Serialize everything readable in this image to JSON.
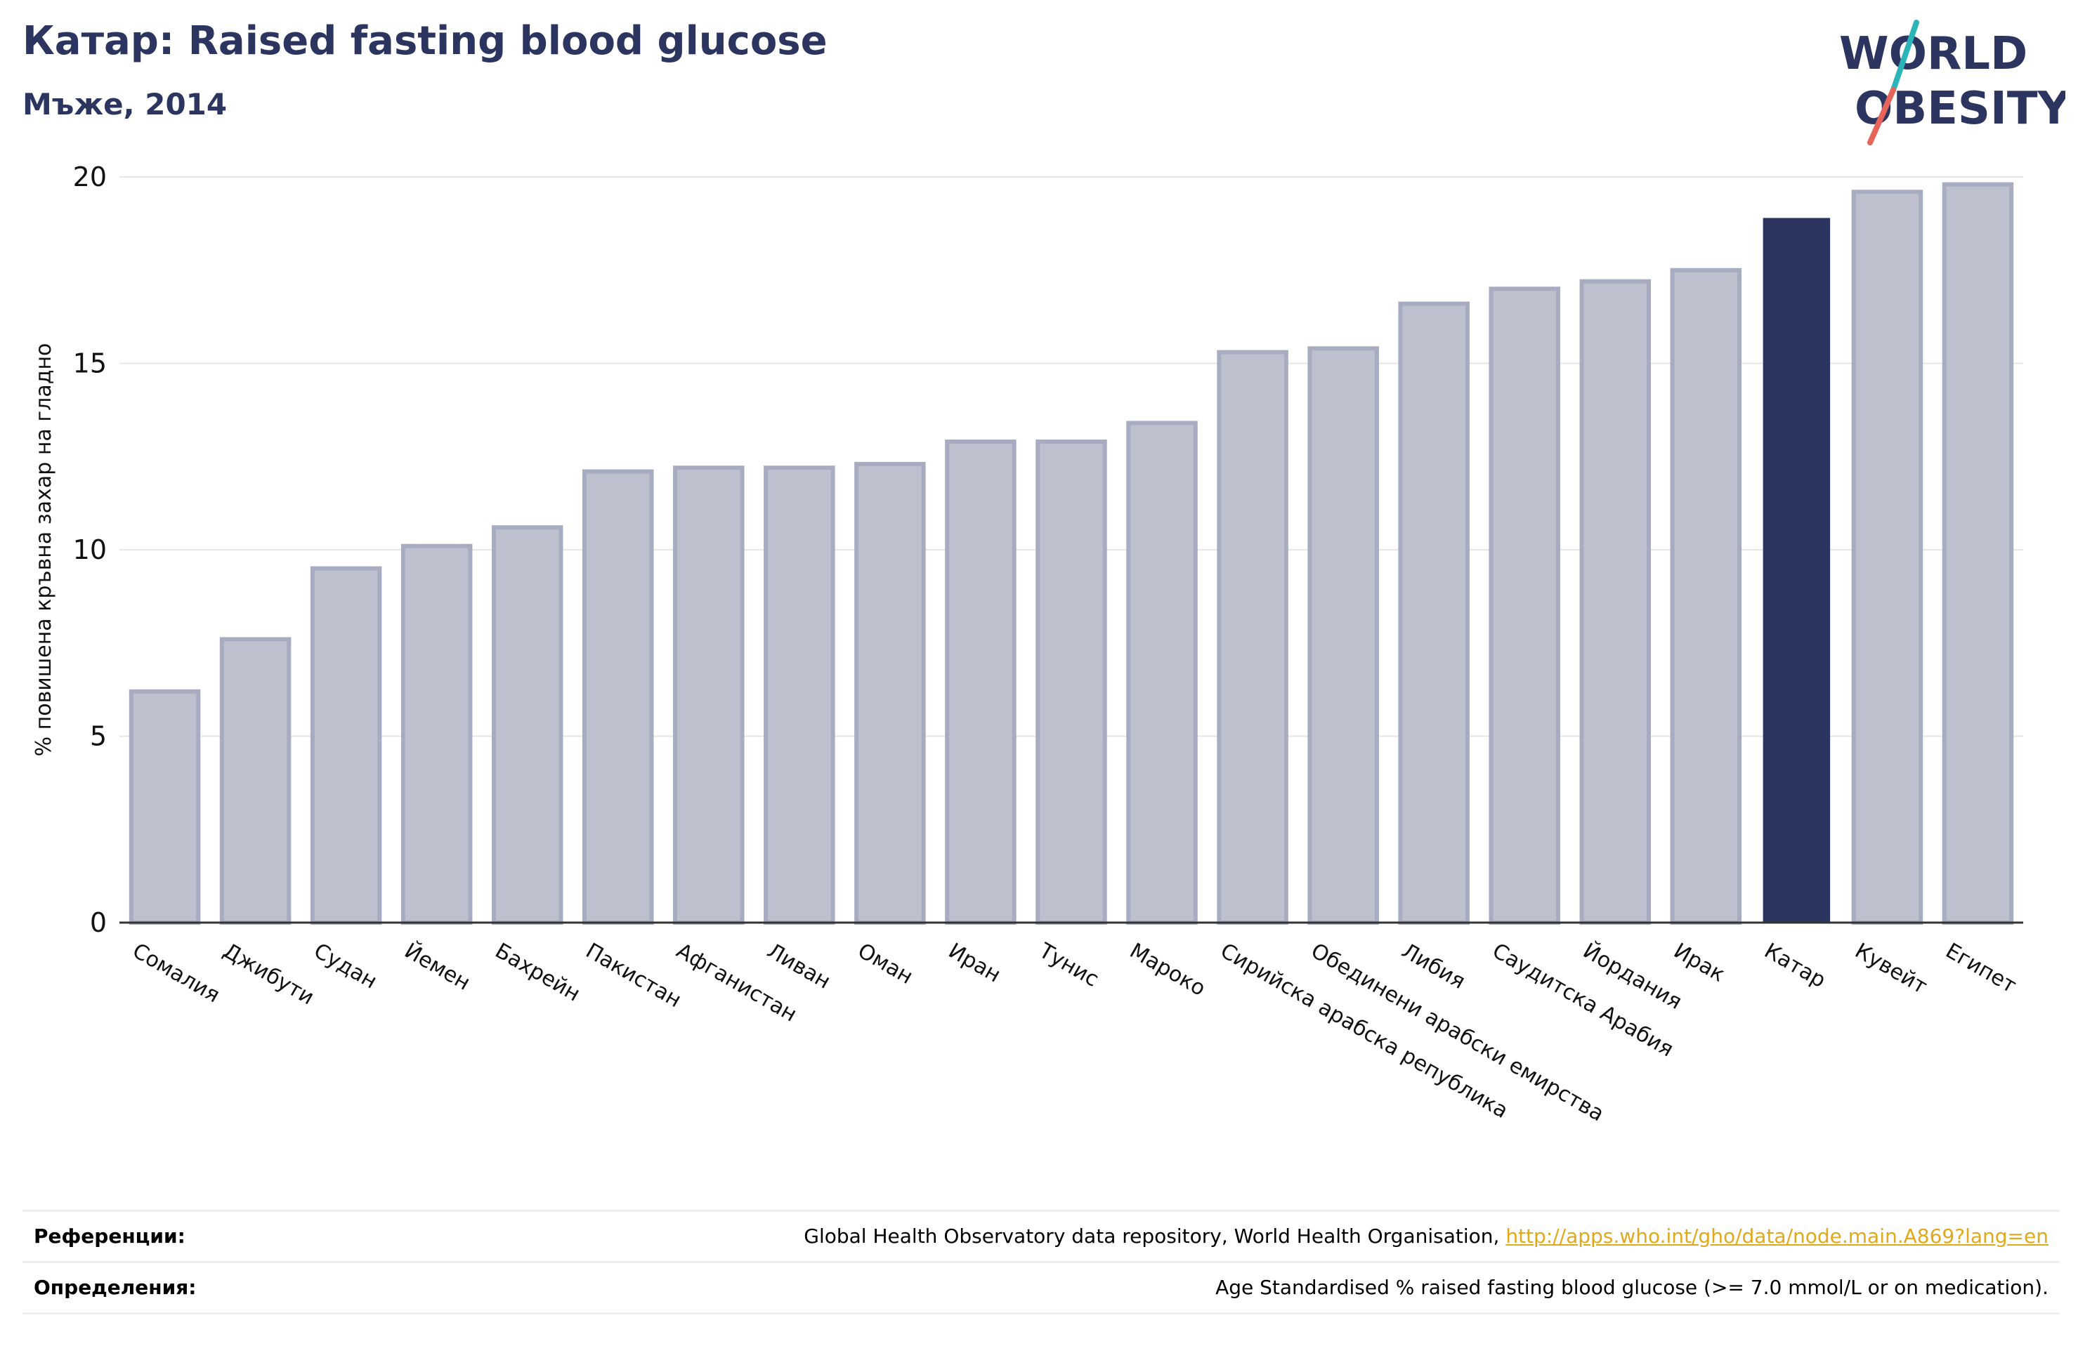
{
  "header": {
    "title": "Катар: Raised fasting blood glucose",
    "subtitle": "Мъже, 2014"
  },
  "logo": {
    "line1": "WORLD",
    "line2": "OBESITY",
    "text_color": "#2b3560",
    "slash_color_top": "#2bb5b8",
    "slash_color_bottom": "#e7645a"
  },
  "colors": {
    "bar": "#bec1cd",
    "bar_stroke": "#a7acc0",
    "highlight": "#2b3560",
    "grid": "#e6e6e6",
    "axis": "#333333"
  },
  "chart_data": {
    "type": "bar",
    "title": "Катар: Raised fasting blood glucose",
    "subtitle": "Мъже, 2014",
    "xlabel": "",
    "ylabel": "% повишена кръвна захар на гладно",
    "ylim": [
      0,
      20
    ],
    "yticks": [
      0,
      5,
      10,
      15,
      20
    ],
    "grid": true,
    "highlight": "Катар",
    "categories": [
      "Сомалия",
      "Джибути",
      "Судан",
      "Йемен",
      "Бахрейн",
      "Пакистан",
      "Афганистан",
      "Ливан",
      "Оман",
      "Иран",
      "Тунис",
      "Мароко",
      "Сирийска арабска република",
      "Обединени арабски емирства",
      "Либия",
      "Саудитска Арабия",
      "Йордания",
      "Ирак",
      "Катар",
      "Кувейт",
      "Египет"
    ],
    "values": [
      6.2,
      7.6,
      9.5,
      10.1,
      10.6,
      12.1,
      12.2,
      12.2,
      12.3,
      12.9,
      12.9,
      13.4,
      15.3,
      15.4,
      16.6,
      17.0,
      17.2,
      17.5,
      18.9,
      19.6,
      19.8
    ]
  },
  "footer": {
    "references_label": "Референции:",
    "references_text": "Global Health Observatory data repository, World Health Organisation, ",
    "references_link": "http://apps.who.int/gho/data/node.main.A869?lang=en",
    "definitions_label": "Определения:",
    "definitions_text": "Age Standardised % raised fasting blood glucose (>= 7.0 mmol/L or on medication)."
  }
}
